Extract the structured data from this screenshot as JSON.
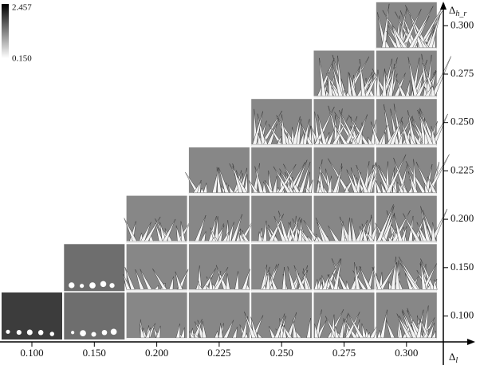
{
  "colorbar": {
    "max": "2.457",
    "min": "0.150"
  },
  "x_axis": {
    "symbol": "Δ",
    "subscript": "l",
    "ticks": [
      "0.100",
      "0.150",
      "0.200",
      "0.225",
      "0.250",
      "0.275",
      "0.300"
    ]
  },
  "y_axis": {
    "symbol": "Δ",
    "subscript": "h_r",
    "ticks": [
      "0.100",
      "0.150",
      "0.200",
      "0.225",
      "0.250",
      "0.275",
      "0.300"
    ]
  }
}
